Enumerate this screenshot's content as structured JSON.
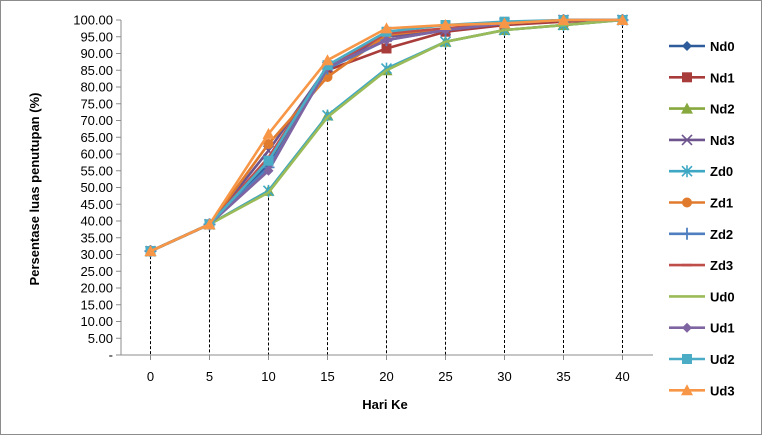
{
  "chart_data": {
    "type": "line",
    "title": "",
    "xlabel": "Hari Ke",
    "ylabel": "Persentase luas penutupan (%)",
    "x": [
      0,
      5,
      10,
      15,
      20,
      25,
      30,
      35,
      40
    ],
    "x_tick_labels": [
      "0",
      "5",
      "10",
      "15",
      "20",
      "25",
      "30",
      "35",
      "40"
    ],
    "ylim": [
      0,
      100
    ],
    "y_tick_labels": [
      "-",
      "5.00",
      "10.00",
      "15.00",
      "20.00",
      "25.00",
      "30.00",
      "35.00",
      "40.00",
      "45.00",
      "50.00",
      "55.00",
      "60.00",
      "65.00",
      "70.00",
      "75.00",
      "80.00",
      "85.00",
      "90.00",
      "95.00",
      "100.00"
    ],
    "grid": "vertical dashed drop lines",
    "legend_position": "right",
    "series": [
      {
        "name": "Nd0",
        "color": "#2E5C9A",
        "marker": "diamond",
        "values": [
          31,
          39,
          57,
          86,
          95,
          97,
          99,
          100,
          100
        ]
      },
      {
        "name": "Nd1",
        "color": "#A83C3A",
        "marker": "square",
        "values": [
          31,
          39,
          58,
          85,
          91.5,
          96.5,
          98.5,
          99.5,
          100
        ]
      },
      {
        "name": "Nd2",
        "color": "#86A83E",
        "marker": "triangle",
        "values": [
          31,
          39,
          49,
          71.5,
          85,
          93.5,
          97,
          98.5,
          100
        ]
      },
      {
        "name": "Nd3",
        "color": "#6E548D",
        "marker": "x",
        "values": [
          31,
          39,
          61,
          86,
          95,
          97,
          99,
          100,
          100
        ]
      },
      {
        "name": "Zd0",
        "color": "#3EA8C4",
        "marker": "star",
        "values": [
          31,
          39,
          49,
          71.5,
          85.5,
          93.5,
          97,
          98.5,
          100
        ]
      },
      {
        "name": "Zd1",
        "color": "#E07B2E",
        "marker": "circle",
        "values": [
          31,
          39,
          63,
          83,
          95.5,
          97.5,
          99,
          100,
          100
        ]
      },
      {
        "name": "Zd2",
        "color": "#4F7FBF",
        "marker": "plus",
        "values": [
          31,
          39,
          56,
          85.5,
          94,
          97,
          99,
          100,
          100
        ]
      },
      {
        "name": "Zd3",
        "color": "#BF4E4B",
        "marker": "dash",
        "values": [
          31,
          39,
          59,
          86,
          96,
          97.5,
          99,
          100,
          100
        ]
      },
      {
        "name": "Ud0",
        "color": "#9BBB59",
        "marker": "none",
        "values": [
          31,
          39,
          48.5,
          71,
          85,
          93.5,
          97,
          98.5,
          100
        ]
      },
      {
        "name": "Ud1",
        "color": "#7F64A2",
        "marker": "diamond",
        "values": [
          31,
          39,
          55,
          86,
          94,
          97,
          99,
          100,
          100
        ]
      },
      {
        "name": "Ud2",
        "color": "#4BACC6",
        "marker": "square",
        "values": [
          31,
          39,
          58,
          86.5,
          96.5,
          98.5,
          99.5,
          100,
          100
        ]
      },
      {
        "name": "Ud3",
        "color": "#F79646",
        "marker": "triangle",
        "values": [
          31,
          39,
          66,
          88,
          97.5,
          98.5,
          99,
          100,
          100
        ]
      }
    ]
  }
}
